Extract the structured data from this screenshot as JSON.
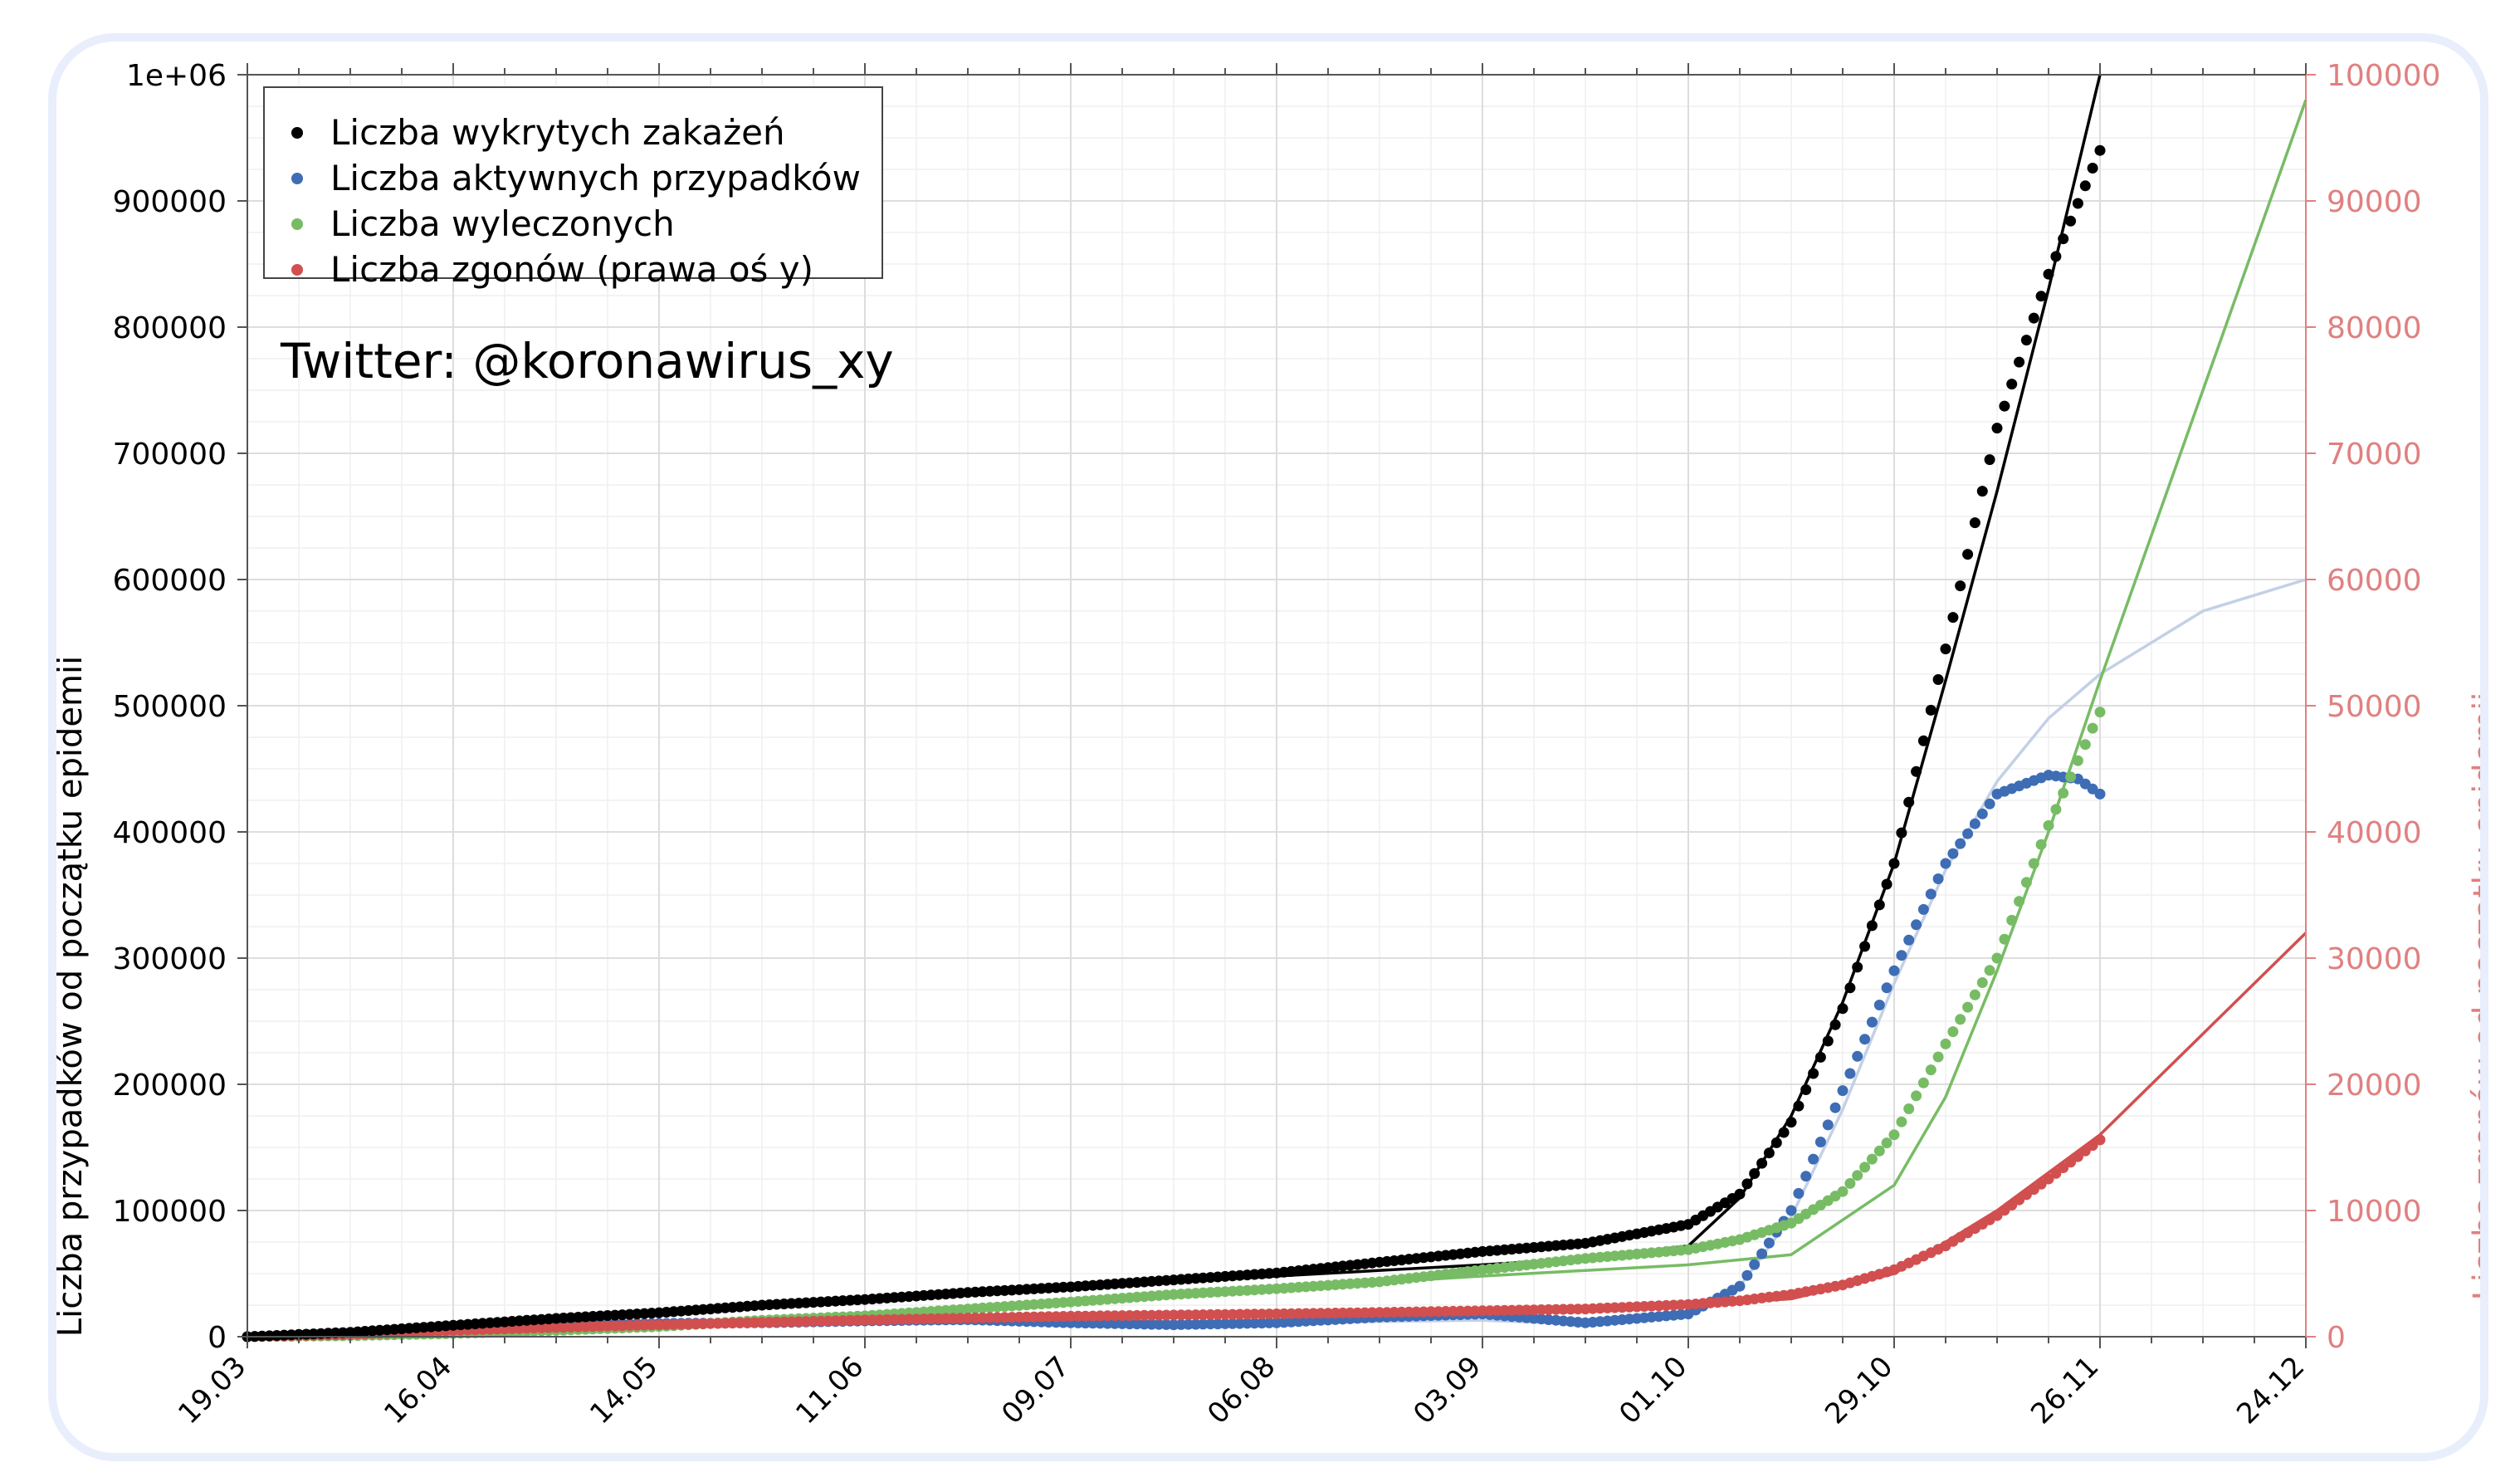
{
  "chart_data": {
    "type": "scatter",
    "annotation": "Twitter: @koronawirus_xy",
    "ylabel": "Liczba przypadków od początku epidemii",
    "y2label": "Liczba zgonów od początku epidemii",
    "ylim": [
      0,
      1000000
    ],
    "y2lim": [
      0,
      100000
    ],
    "x_days_range": [
      0,
      280
    ],
    "y_ticks": [
      {
        "v": 0,
        "label": "0"
      },
      {
        "v": 100000,
        "label": "100000"
      },
      {
        "v": 200000,
        "label": "200000"
      },
      {
        "v": 300000,
        "label": "300000"
      },
      {
        "v": 400000,
        "label": "400000"
      },
      {
        "v": 500000,
        "label": "500000"
      },
      {
        "v": 600000,
        "label": "600000"
      },
      {
        "v": 700000,
        "label": "700000"
      },
      {
        "v": 800000,
        "label": "800000"
      },
      {
        "v": 900000,
        "label": "900000"
      },
      {
        "v": 1000000,
        "label": "1e+06"
      }
    ],
    "y2_ticks": [
      {
        "v": 0,
        "label": "0"
      },
      {
        "v": 10000,
        "label": "10000"
      },
      {
        "v": 20000,
        "label": "20000"
      },
      {
        "v": 30000,
        "label": "30000"
      },
      {
        "v": 40000,
        "label": "40000"
      },
      {
        "v": 50000,
        "label": "50000"
      },
      {
        "v": 60000,
        "label": "60000"
      },
      {
        "v": 70000,
        "label": "70000"
      },
      {
        "v": 80000,
        "label": "80000"
      },
      {
        "v": 90000,
        "label": "90000"
      },
      {
        "v": 100000,
        "label": "100000"
      }
    ],
    "x_ticks": [
      {
        "day": 0,
        "label": "19.03"
      },
      {
        "day": 28,
        "label": "16.04"
      },
      {
        "day": 56,
        "label": "14.05"
      },
      {
        "day": 84,
        "label": "11.06"
      },
      {
        "day": 112,
        "label": "09.07"
      },
      {
        "day": 140,
        "label": "06.08"
      },
      {
        "day": 168,
        "label": "03.09"
      },
      {
        "day": 196,
        "label": "01.10"
      },
      {
        "day": 224,
        "label": "29.10"
      },
      {
        "day": 252,
        "label": "26.11"
      },
      {
        "day": 280,
        "label": "24.12"
      }
    ],
    "legend_position": "top-left",
    "grid": true,
    "colors": {
      "cases": "#000000",
      "active": "#3e6db5",
      "recovered": "#77bc65",
      "deaths": "#d24f4f",
      "axis2": "#e08080"
    },
    "series": [
      {
        "key": "cases",
        "name": "Liczba wykrytych zakażeń",
        "axis": "left",
        "color": "#000000",
        "x": [
          0,
          14,
          28,
          42,
          56,
          70,
          84,
          98,
          112,
          126,
          140,
          154,
          168,
          182,
          196,
          203,
          210,
          217,
          224,
          231,
          238,
          245,
          252
        ],
        "y": [
          0,
          3500,
          9000,
          14500,
          19000,
          25000,
          29500,
          35000,
          39500,
          45000,
          50500,
          59000,
          67500,
          74000,
          89000,
          113000,
          170000,
          260000,
          375000,
          545000,
          720000,
          842000,
          940000
        ],
        "fit_x": [
          0,
          28,
          56,
          84,
          112,
          140,
          168,
          182,
          196,
          203,
          210,
          217,
          224,
          231,
          238,
          245,
          252
        ],
        "fit_y": [
          0,
          8500,
          18000,
          28500,
          38500,
          48000,
          57000,
          62000,
          72000,
          110000,
          175000,
          265000,
          375000,
          520000,
          670000,
          830000,
          1000000
        ]
      },
      {
        "key": "active",
        "name": "Liczba aktywnych przypadków",
        "axis": "left",
        "color": "#3e6db5",
        "x": [
          0,
          14,
          28,
          42,
          56,
          70,
          84,
          98,
          112,
          126,
          140,
          154,
          168,
          182,
          196,
          203,
          210,
          217,
          224,
          231,
          238,
          245,
          249,
          252
        ],
        "y": [
          0,
          2500,
          6000,
          9000,
          10500,
          11000,
          12500,
          13500,
          11000,
          9500,
          11000,
          15500,
          18000,
          11000,
          18000,
          40000,
          100000,
          195000,
          290000,
          375000,
          430000,
          445000,
          442000,
          430000
        ],
        "fit_x": [
          0,
          56,
          112,
          140,
          168,
          182,
          196,
          203,
          210,
          217,
          224,
          231,
          238,
          245,
          252,
          266,
          280
        ],
        "fit_y": [
          0,
          10000,
          11000,
          11000,
          13000,
          10000,
          18000,
          40000,
          95000,
          180000,
          280000,
          370000,
          440000,
          490000,
          525000,
          575000,
          600000
        ]
      },
      {
        "key": "recovered",
        "name": "Liczba wyleczonych",
        "axis": "left",
        "color": "#77bc65",
        "x": [
          0,
          14,
          28,
          42,
          56,
          70,
          84,
          98,
          112,
          126,
          140,
          154,
          168,
          182,
          196,
          203,
          210,
          217,
          224,
          231,
          238,
          245,
          252
        ],
        "y": [
          0,
          800,
          2500,
          5000,
          8000,
          13000,
          16500,
          22000,
          27500,
          33500,
          38000,
          43500,
          53000,
          62000,
          69000,
          77000,
          90000,
          115000,
          160000,
          232000,
          300000,
          405000,
          495000
        ],
        "fit_x": [
          0,
          56,
          112,
          140,
          168,
          196,
          210,
          224,
          231,
          238,
          245,
          252,
          266,
          280
        ],
        "fit_y": [
          0,
          8000,
          27000,
          38000,
          48000,
          57000,
          65000,
          120000,
          190000,
          290000,
          400000,
          520000,
          750000,
          980000
        ]
      },
      {
        "key": "deaths",
        "name": "Liczba zgonów (prawa oś y)",
        "axis": "right",
        "color": "#d24f4f",
        "x": [
          0,
          14,
          28,
          42,
          56,
          70,
          84,
          98,
          112,
          126,
          140,
          154,
          168,
          182,
          196,
          203,
          210,
          217,
          224,
          231,
          238,
          245,
          252
        ],
        "y": [
          0,
          180,
          500,
          730,
          950,
          1130,
          1320,
          1480,
          1620,
          1720,
          1810,
          1920,
          2050,
          2200,
          2550,
          2850,
          3350,
          4100,
          5300,
          7200,
          9600,
          12500,
          15600
        ],
        "fit_x": [
          0,
          56,
          112,
          168,
          196,
          210,
          224,
          238,
          252,
          266,
          280
        ],
        "fit_y": [
          0,
          900,
          1600,
          2100,
          2500,
          3000,
          5000,
          10000,
          16000,
          24000,
          32000
        ]
      }
    ]
  }
}
